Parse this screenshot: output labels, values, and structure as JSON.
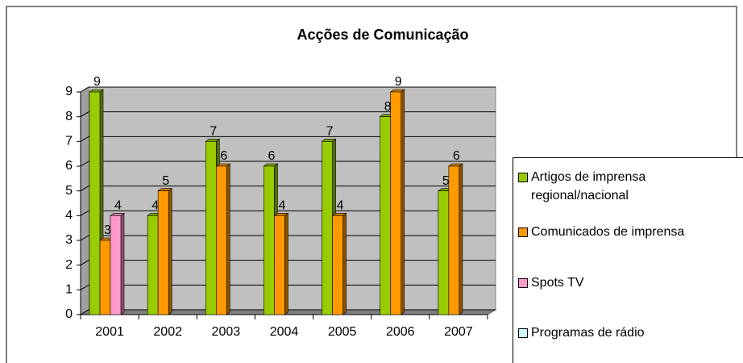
{
  "chart_data": {
    "type": "bar3d",
    "title": "Acções de Comunicação",
    "categories": [
      "2001",
      "2002",
      "2003",
      "2004",
      "2005",
      "2006",
      "2007"
    ],
    "series": [
      {
        "name": "Artigos de imprensa regional/nacional",
        "color": "#99cc00",
        "values": [
          9,
          4,
          7,
          6,
          7,
          8,
          5
        ]
      },
      {
        "name": "Comunicados de imprensa",
        "color": "#ff9900",
        "values": [
          3,
          5,
          6,
          4,
          4,
          9,
          6
        ]
      },
      {
        "name": "Spots TV",
        "color": "#ff99cc",
        "values": [
          4,
          null,
          null,
          null,
          null,
          null,
          null
        ]
      },
      {
        "name": "Programas de rádio",
        "color": "#ccffff",
        "values": [
          null,
          null,
          null,
          null,
          null,
          null,
          null
        ]
      }
    ],
    "ylim": [
      0,
      9
    ],
    "yticks": [
      0,
      1,
      2,
      3,
      4,
      5,
      6,
      7,
      8,
      9
    ],
    "grid": true,
    "data_labels": true,
    "legend": "right"
  }
}
